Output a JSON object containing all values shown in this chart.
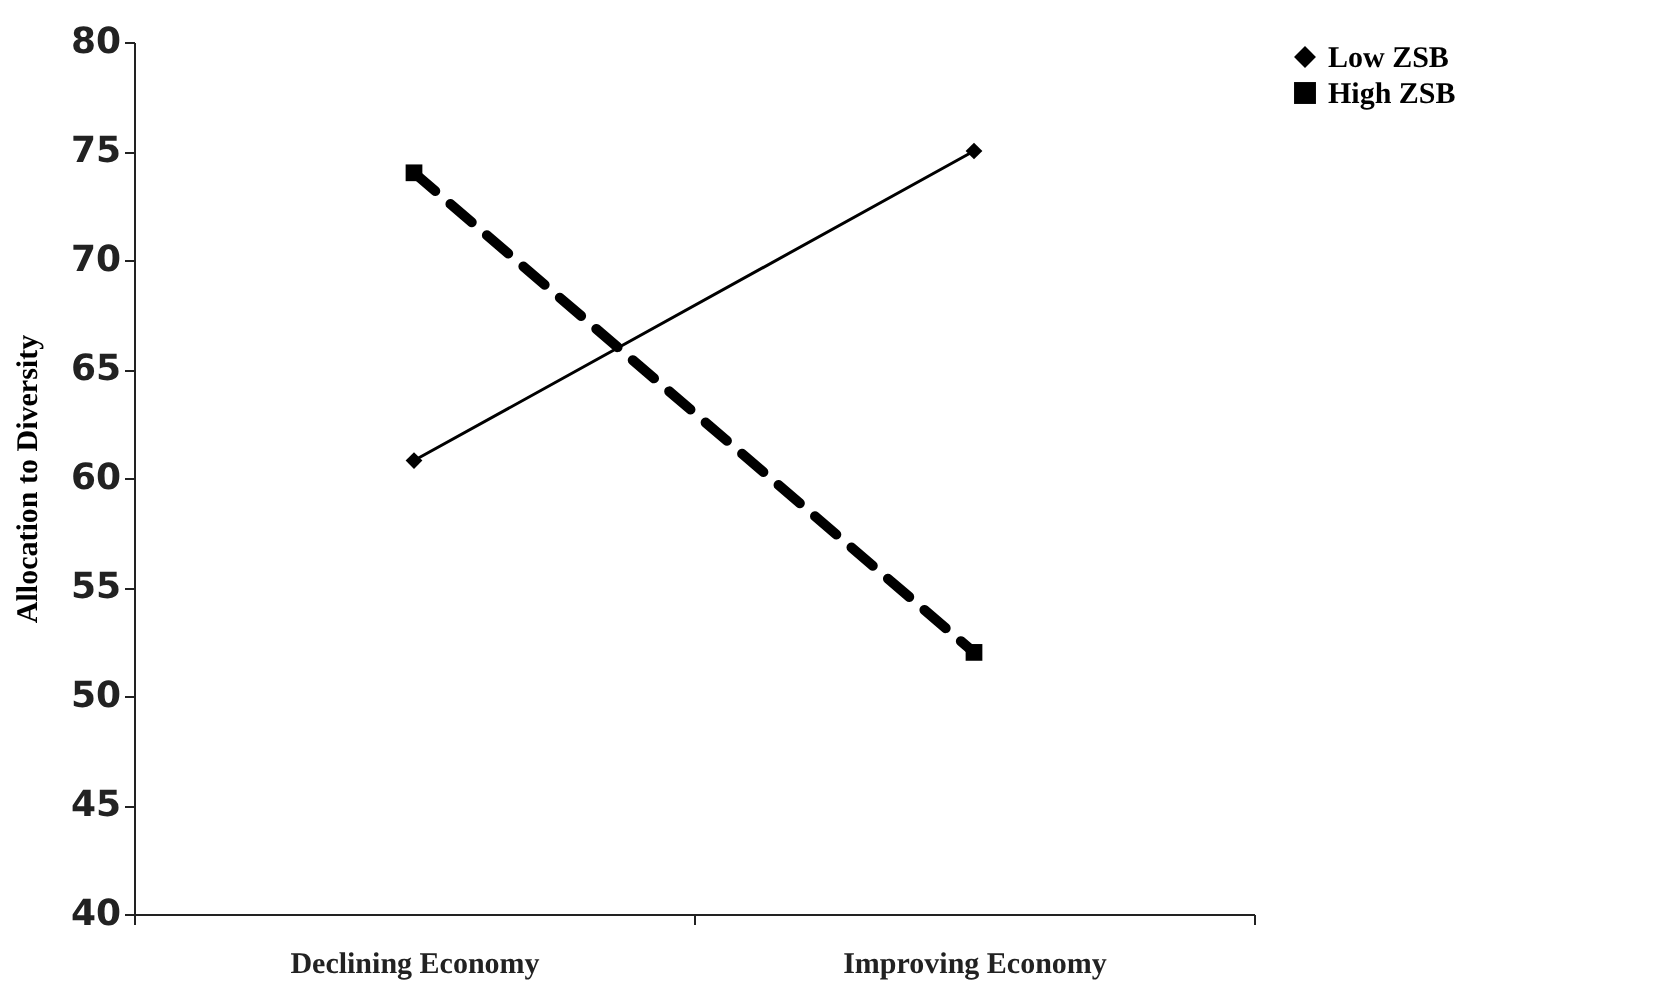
{
  "chart_data": {
    "type": "line",
    "ylabel": "Allocation to Diversity",
    "categories": [
      "Declining Economy",
      "Improving Economy"
    ],
    "series": [
      {
        "name": "Low ZSB",
        "color": "#000000",
        "values": [
          60.8,
          75.0
        ],
        "marker": "diamond",
        "line_style": "solid"
      },
      {
        "name": "High ZSB",
        "color": "#000000",
        "values": [
          74.0,
          52.0
        ],
        "marker": "square",
        "line_style": "dashed"
      }
    ],
    "ylim": [
      40,
      80
    ],
    "yticks": [
      40,
      45,
      50,
      55,
      60,
      65,
      70,
      75,
      80
    ],
    "grid": false,
    "legend": "right"
  }
}
